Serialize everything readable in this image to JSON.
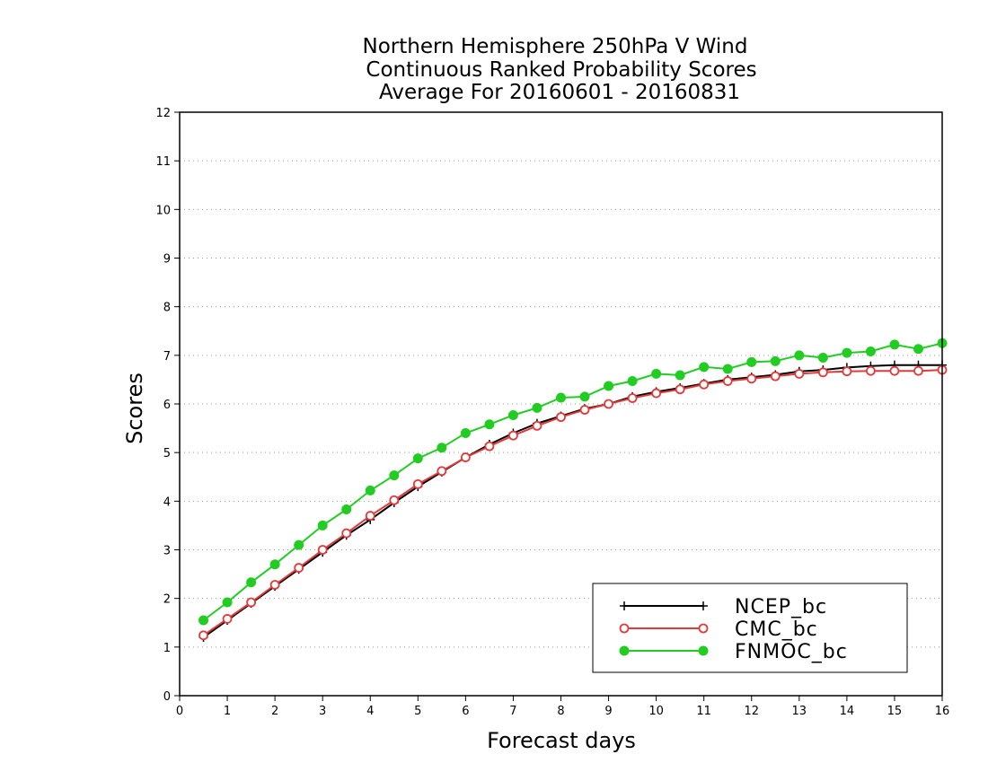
{
  "chart_data": {
    "type": "line",
    "title": [
      "Northern Hemisphere 250hPa V Wind",
      "Continuous Ranked Probability Scores",
      "Average For 20160601 - 20160831"
    ],
    "xlabel": "Forecast days",
    "ylabel": "Scores",
    "xlim": [
      0,
      16
    ],
    "ylim": [
      0,
      12
    ],
    "xticks": [
      "0",
      "1",
      "2",
      "3",
      "4",
      "5",
      "6",
      "7",
      "8",
      "9",
      "10",
      "11",
      "12",
      "13",
      "14",
      "15",
      "16"
    ],
    "yticks": [
      "0",
      "1",
      "2",
      "3",
      "4",
      "5",
      "6",
      "7",
      "8",
      "9",
      "10",
      "11",
      "12"
    ],
    "grid": "horizontal dotted",
    "legend_position": "bottom-right",
    "x": [
      0.5,
      1,
      1.5,
      2,
      2.5,
      3,
      3.5,
      4,
      4.5,
      5,
      5.5,
      6,
      6.5,
      7,
      7.5,
      8,
      8.5,
      9,
      9.5,
      10,
      10.5,
      11,
      11.5,
      12,
      12.5,
      13,
      13.5,
      14,
      14.5,
      15,
      15.5,
      16
    ],
    "series": [
      {
        "name": "NCEP_bc",
        "color": "#000000",
        "marker": "plus",
        "values": [
          1.2,
          1.55,
          1.9,
          2.25,
          2.6,
          2.95,
          3.3,
          3.62,
          3.97,
          4.3,
          4.6,
          4.9,
          5.17,
          5.4,
          5.6,
          5.75,
          5.9,
          6.0,
          6.15,
          6.25,
          6.33,
          6.42,
          6.5,
          6.55,
          6.6,
          6.67,
          6.7,
          6.75,
          6.78,
          6.8,
          6.8,
          6.8
        ]
      },
      {
        "name": "CMC_bc",
        "color": "#e03a3a",
        "marker": "open-circle",
        "values": [
          1.24,
          1.58,
          1.92,
          2.28,
          2.63,
          3.0,
          3.34,
          3.7,
          4.02,
          4.35,
          4.62,
          4.9,
          5.13,
          5.35,
          5.55,
          5.73,
          5.88,
          6.0,
          6.12,
          6.22,
          6.3,
          6.4,
          6.47,
          6.52,
          6.57,
          6.62,
          6.65,
          6.67,
          6.68,
          6.68,
          6.68,
          6.7
        ]
      },
      {
        "name": "FNMOC_bc",
        "color": "#22cc22",
        "marker": "filled-circle",
        "values": [
          1.55,
          1.92,
          2.33,
          2.7,
          3.1,
          3.5,
          3.83,
          4.22,
          4.53,
          4.88,
          5.1,
          5.4,
          5.58,
          5.77,
          5.92,
          6.13,
          6.15,
          6.37,
          6.47,
          6.62,
          6.59,
          6.76,
          6.72,
          6.86,
          6.88,
          7.0,
          6.95,
          7.05,
          7.08,
          7.22,
          7.13,
          7.25
        ]
      }
    ]
  }
}
